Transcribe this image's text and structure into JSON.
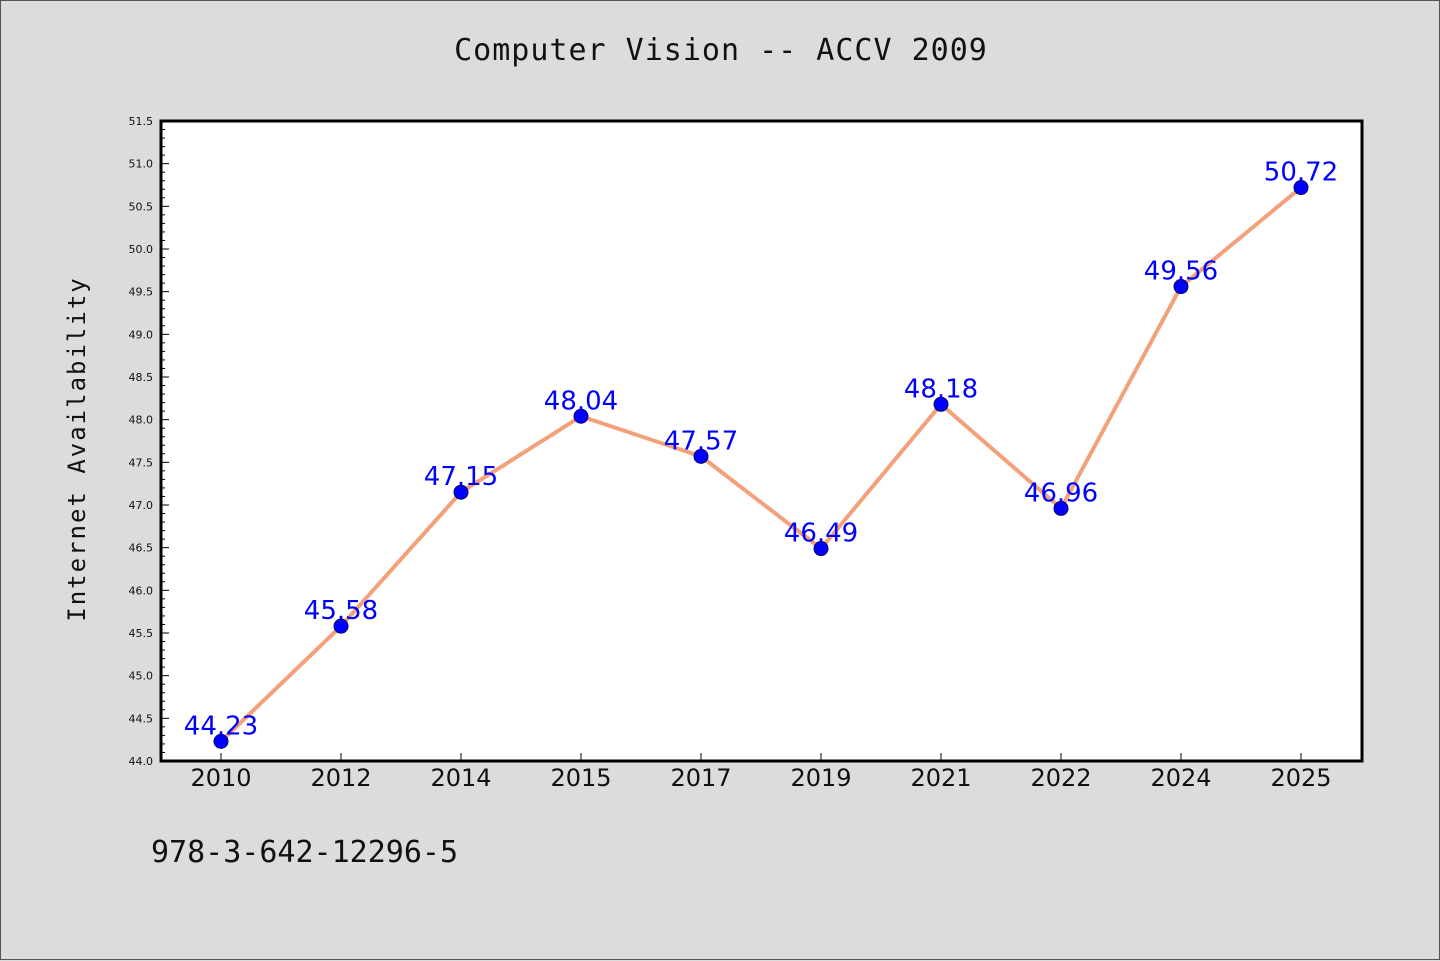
{
  "title": "Computer Vision -- ACCV 2009",
  "footer_text": "978-3-642-12296-5",
  "chart_data": {
    "type": "line",
    "title": "Computer Vision -- ACCV 2009",
    "xlabel": "",
    "ylabel": "Internet Availability",
    "categories": [
      "2010",
      "2012",
      "2014",
      "2015",
      "2017",
      "2019",
      "2021",
      "2022",
      "2024",
      "2025"
    ],
    "series": [
      {
        "values": [
          44.23,
          45.58,
          47.15,
          48.04,
          47.57,
          46.49,
          48.18,
          46.96,
          49.56,
          50.72
        ],
        "labels": [
          "44.23",
          "45.58",
          "47.15",
          "48.04",
          "47.57",
          "46.49",
          "48.18",
          "46.96",
          "49.56",
          "50.72"
        ]
      }
    ],
    "ylim": [
      44.0,
      51.5
    ],
    "yticks": [
      "44.0",
      "44.5",
      "45.0",
      "45.5",
      "46.0",
      "46.5",
      "47.0",
      "47.5",
      "48.0",
      "48.5",
      "49.0",
      "49.5",
      "50.0",
      "50.5",
      "51.0",
      "51.5"
    ],
    "grid": false,
    "line_color": "#f4a07a",
    "marker_color": "#0000ff",
    "label_color": "#0000ff",
    "background_color": "#dcdcdc",
    "plot_background": "#ffffff"
  }
}
